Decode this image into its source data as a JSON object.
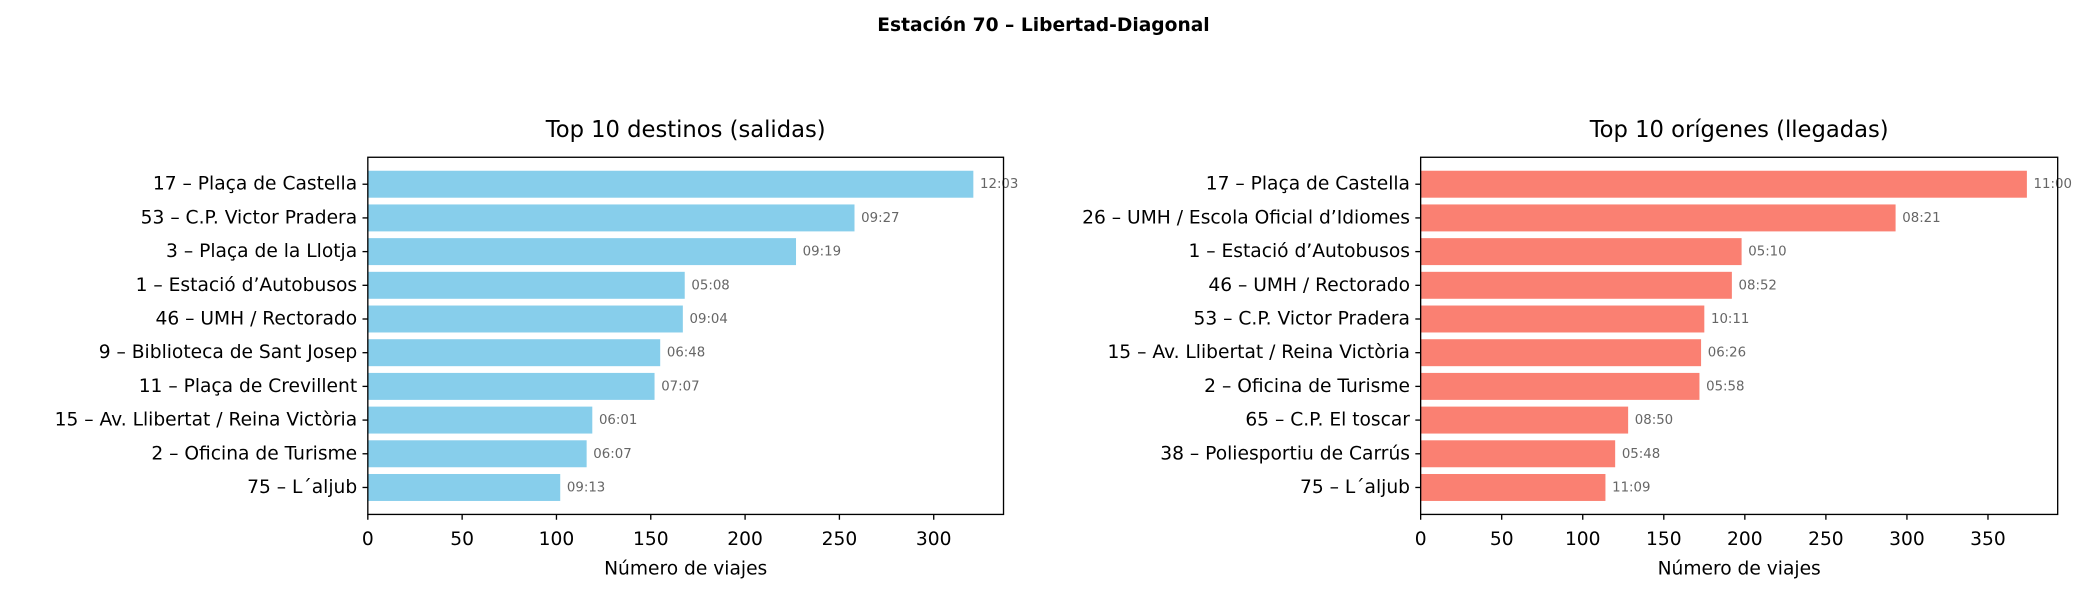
{
  "suptitle": "Estación 70 – Libertad-Diagonal",
  "chart_data": [
    {
      "type": "bar",
      "orientation": "horizontal",
      "title": "Top 10 destinos (salidas)",
      "xlabel": "Número de viajes",
      "categories": [
        "17 – Plaça de Castella",
        "53 – C.P. Victor Pradera",
        "3 – Plaça de la Llotja",
        "1 – Estació d’Autobusos",
        "46 – UMH / Rectorado",
        "9 – Biblioteca de Sant Josep",
        "11 – Plaça de Crevillent",
        "15 – Av. Llibertat / Reina Victòria",
        "2 – Oficina de Turisme",
        "75 – L´aljub"
      ],
      "values": [
        321,
        258,
        227,
        168,
        167,
        155,
        152,
        119,
        116,
        102
      ],
      "bar_labels": [
        "12:03",
        "09:27",
        "09:19",
        "05:08",
        "09:04",
        "06:48",
        "07:07",
        "06:01",
        "06:07",
        "09:13"
      ],
      "color": "#87ceeb",
      "xlim": [
        0,
        337
      ],
      "xticks": [
        0,
        50,
        100,
        150,
        200,
        250,
        300
      ]
    },
    {
      "type": "bar",
      "orientation": "horizontal",
      "title": "Top 10 orígenes (llegadas)",
      "xlabel": "Número de viajes",
      "categories": [
        "17 – Plaça de Castella",
        "26 – UMH / Escola Oficial d’Idiomes",
        "1 – Estació d’Autobusos",
        "46 – UMH / Rectorado",
        "53 – C.P. Victor Pradera",
        "15 – Av. Llibertat / Reina Victòria",
        "2 – Oficina de Turisme",
        "65 – C.P. El toscar",
        "38 – Poliesportiu de Carrús",
        "75 – L´aljub"
      ],
      "values": [
        374,
        293,
        198,
        192,
        175,
        173,
        172,
        128,
        120,
        114
      ],
      "bar_labels": [
        "11:00",
        "08:21",
        "05:10",
        "08:52",
        "10:11",
        "06:26",
        "05:58",
        "08:50",
        "05:48",
        "11:09"
      ],
      "color": "#fa8072",
      "xlim": [
        0,
        393
      ],
      "xticks": [
        0,
        50,
        100,
        150,
        200,
        250,
        300,
        350
      ]
    }
  ]
}
